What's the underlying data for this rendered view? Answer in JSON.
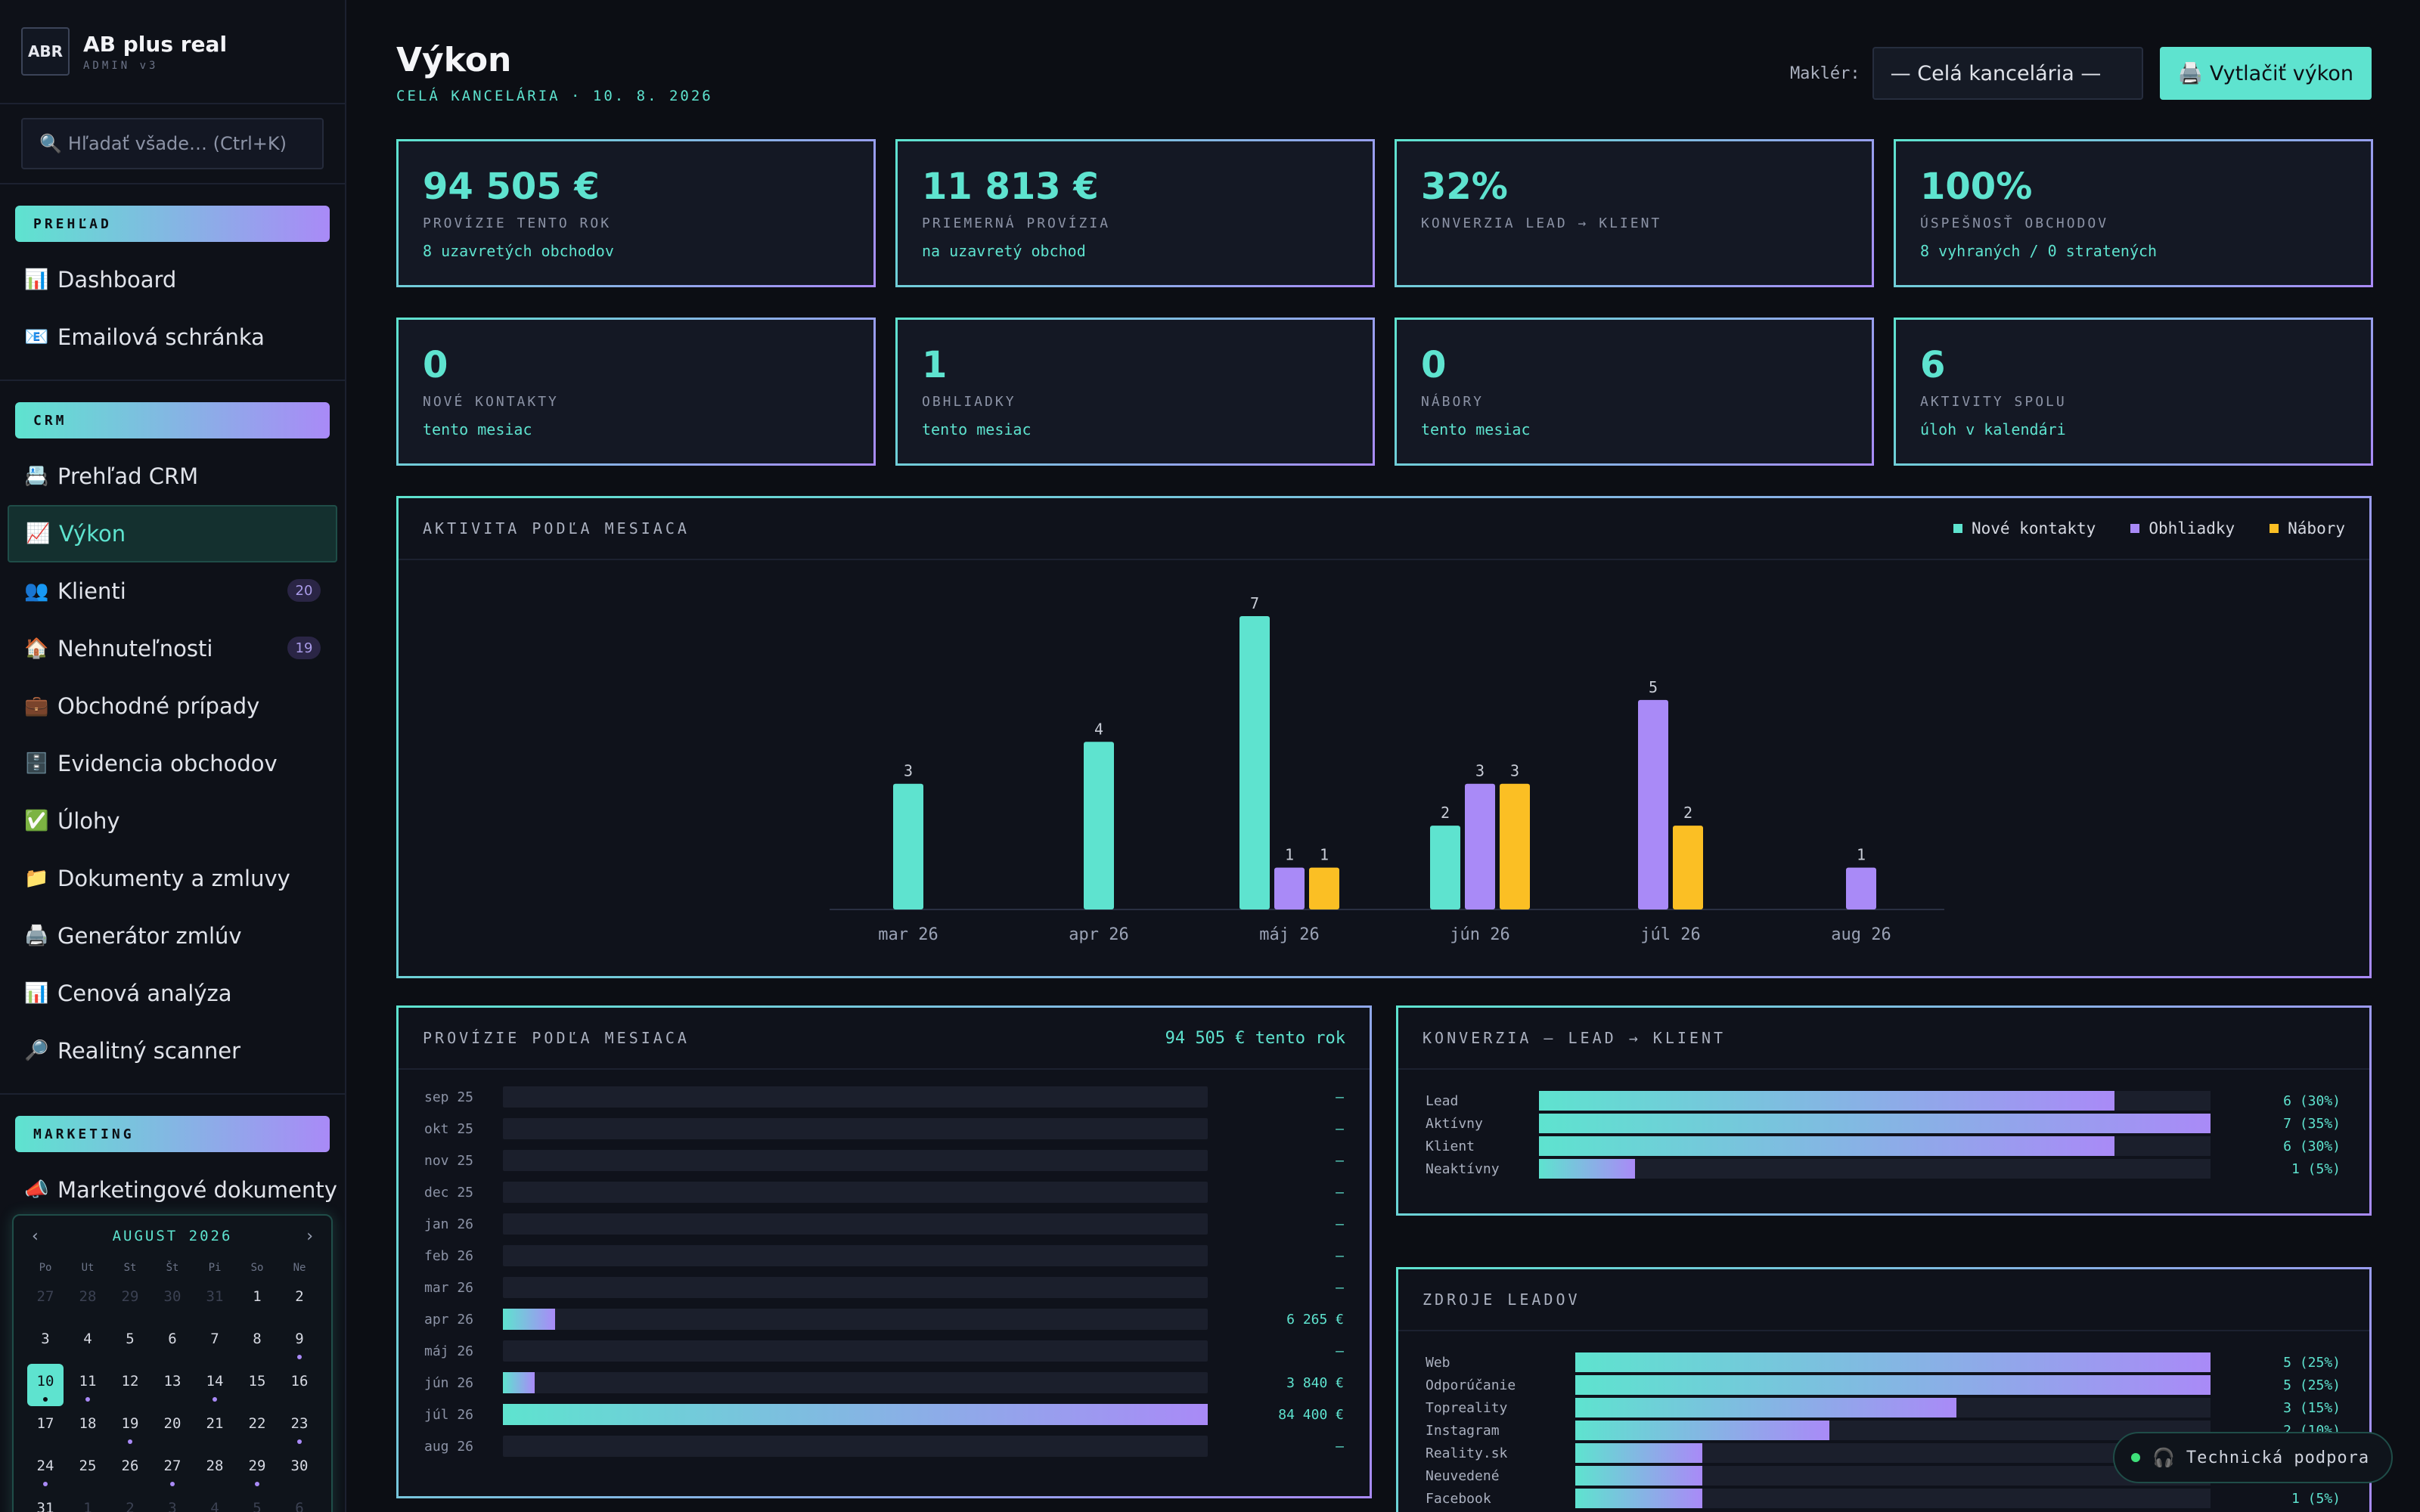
{
  "brand": {
    "logo": "ABR",
    "name": "AB plus real",
    "sub": "ADMIN v3"
  },
  "search": {
    "icon": "magnifier-icon",
    "placeholder": "Hľadať všade… (Ctrl+K)"
  },
  "sidebar": {
    "sections": [
      {
        "title": "PREHĽAD",
        "items": [
          {
            "icon": "📊",
            "label": "Dashboard"
          },
          {
            "icon": "📧",
            "label": "Emailová schránka"
          }
        ]
      },
      {
        "title": "CRM",
        "items": [
          {
            "icon": "📇",
            "label": "Prehľad CRM"
          },
          {
            "icon": "📈",
            "label": "Výkon",
            "active": true
          },
          {
            "icon": "👥",
            "label": "Klienti",
            "badge": "20"
          },
          {
            "icon": "🏠",
            "label": "Nehnuteľnosti",
            "badge": "19"
          },
          {
            "icon": "💼",
            "label": "Obchodné prípady"
          },
          {
            "icon": "🗄️",
            "label": "Evidencia obchodov"
          },
          {
            "icon": "✅",
            "label": "Úlohy"
          },
          {
            "icon": "📁",
            "label": "Dokumenty a zmluvy"
          },
          {
            "icon": "🖨️",
            "label": "Generátor zmlúv"
          },
          {
            "icon": "📊",
            "label": "Cenová analýza"
          },
          {
            "icon": "🔎",
            "label": "Realitný scanner"
          }
        ]
      },
      {
        "title": "MARKETING",
        "items": [
          {
            "icon": "📣",
            "label": "Marketingové dokumenty"
          }
        ]
      }
    ]
  },
  "calendar": {
    "prev": "‹",
    "next": "›",
    "title": "AUGUST 2026",
    "dow": [
      "Po",
      "Ut",
      "St",
      "Št",
      "Pi",
      "So",
      "Ne"
    ],
    "days": [
      {
        "d": "27",
        "out": true
      },
      {
        "d": "28",
        "out": true
      },
      {
        "d": "29",
        "out": true
      },
      {
        "d": "30",
        "out": true
      },
      {
        "d": "31",
        "out": true
      },
      {
        "d": "1"
      },
      {
        "d": "2"
      },
      {
        "d": "3"
      },
      {
        "d": "4"
      },
      {
        "d": "5"
      },
      {
        "d": "6"
      },
      {
        "d": "7"
      },
      {
        "d": "8"
      },
      {
        "d": "9",
        "dot": true
      },
      {
        "d": "10",
        "today": true,
        "dot": true
      },
      {
        "d": "11",
        "dot": true
      },
      {
        "d": "12"
      },
      {
        "d": "13"
      },
      {
        "d": "14",
        "dot": true
      },
      {
        "d": "15"
      },
      {
        "d": "16"
      },
      {
        "d": "17"
      },
      {
        "d": "18"
      },
      {
        "d": "19",
        "dot": true
      },
      {
        "d": "20"
      },
      {
        "d": "21"
      },
      {
        "d": "22"
      },
      {
        "d": "23",
        "dot": true
      },
      {
        "d": "24",
        "dot": true
      },
      {
        "d": "25"
      },
      {
        "d": "26"
      },
      {
        "d": "27",
        "dot": true
      },
      {
        "d": "28"
      },
      {
        "d": "29",
        "dot": true
      },
      {
        "d": "30"
      },
      {
        "d": "31"
      },
      {
        "d": "1",
        "out": true
      },
      {
        "d": "2",
        "out": true
      },
      {
        "d": "3",
        "out": true
      },
      {
        "d": "4",
        "out": true
      },
      {
        "d": "5",
        "out": true
      },
      {
        "d": "6",
        "out": true
      }
    ]
  },
  "header": {
    "title": "Výkon",
    "subtitle": "CELÁ KANCELÁRIA · 10. 8. 2026",
    "broker_label": "Maklér:",
    "broker_value": "— Celá kancelária —",
    "print_label": "🖨️ Vytlačiť výkon"
  },
  "kpis": [
    {
      "value": "94 505 €",
      "label": "PROVÍZIE TENTO ROK",
      "sub": "8 uzavretých obchodov"
    },
    {
      "value": "11 813 €",
      "label": "PRIEMERNÁ PROVÍZIA",
      "sub": "na uzavretý obchod"
    },
    {
      "value": "32%",
      "label": "KONVERZIA LEAD → KLIENT",
      "sub": ""
    },
    {
      "value": "100%",
      "label": "ÚSPEŠNOSŤ OBCHODOV",
      "sub": "8 vyhraných / 0 stratených"
    },
    {
      "value": "0",
      "label": "NOVÉ KONTAKTY",
      "sub": "tento mesiac"
    },
    {
      "value": "1",
      "label": "OBHLIADKY",
      "sub": "tento mesiac"
    },
    {
      "value": "0",
      "label": "NÁBORY",
      "sub": "tento mesiac"
    },
    {
      "value": "6",
      "label": "AKTIVITY SPOLU",
      "sub": "úloh v kalendári"
    }
  ],
  "colors": {
    "contacts": "#5ee3cf",
    "viewings": "#a98af7",
    "recruit": "#fbbf24"
  },
  "chart_data": [
    {
      "type": "bar",
      "title": "AKTIVITA PODĽA MESIACA",
      "categories": [
        "mar 26",
        "apr 26",
        "máj 26",
        "jún 26",
        "júl 26",
        "aug 26"
      ],
      "series": [
        {
          "name": "Nové kontakty",
          "values": [
            3,
            4,
            7,
            2,
            0,
            0
          ]
        },
        {
          "name": "Obhliadky",
          "values": [
            0,
            0,
            1,
            3,
            5,
            1
          ]
        },
        {
          "name": "Nábory",
          "values": [
            0,
            0,
            1,
            3,
            2,
            0
          ]
        }
      ],
      "legend": "top-right"
    },
    {
      "type": "bar",
      "orientation": "horizontal",
      "title": "PROVÍZIE PODĽA MESIACA",
      "total_label": "94 505 € tento rok",
      "categories": [
        "sep 25",
        "okt 25",
        "nov 25",
        "dec 25",
        "jan 26",
        "feb 26",
        "mar 26",
        "apr 26",
        "máj 26",
        "jún 26",
        "júl 26",
        "aug 26"
      ],
      "values": [
        0,
        0,
        0,
        0,
        0,
        0,
        0,
        6265,
        0,
        3840,
        84400,
        0
      ],
      "value_labels": [
        "—",
        "—",
        "—",
        "—",
        "—",
        "—",
        "—",
        "6 265 €",
        "—",
        "3 840 €",
        "84 400 €",
        "—"
      ]
    },
    {
      "type": "bar",
      "orientation": "horizontal",
      "title": "KONVERZIA — LEAD → KLIENT",
      "categories": [
        "Lead",
        "Aktívny",
        "Klient",
        "Neaktívny"
      ],
      "values": [
        6,
        7,
        6,
        1
      ],
      "value_labels": [
        "6 (30%)",
        "7 (35%)",
        "6 (30%)",
        "1 (5%)"
      ]
    },
    {
      "type": "bar",
      "orientation": "horizontal",
      "title": "ZDROJE LEADOV",
      "categories": [
        "Web",
        "Odporúčanie",
        "Topreality",
        "Instagram",
        "Reality.sk",
        "Neuvedené",
        "Facebook"
      ],
      "values": [
        5,
        5,
        3,
        2,
        1,
        1,
        1
      ],
      "value_labels": [
        "5 (25%)",
        "5 (25%)",
        "3 (15%)",
        "2 (10%)",
        "1 (5%)",
        "1 (5%)",
        "1 (5%)"
      ]
    }
  ],
  "support": {
    "icon": "headset-icon",
    "label": "Technická podpora"
  }
}
